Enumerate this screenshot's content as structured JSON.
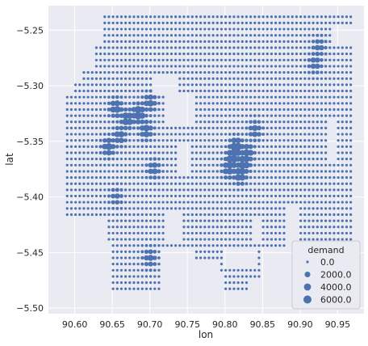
{
  "chart_data": {
    "type": "scatter",
    "xlabel": "lon",
    "ylabel": "lat",
    "xlim": [
      90.565,
      90.985
    ],
    "ylim": [
      -5.505,
      -5.228
    ],
    "xticks": [
      "90.60",
      "90.65",
      "90.70",
      "90.75",
      "90.80",
      "90.85",
      "90.90",
      "90.95"
    ],
    "yticks": [
      "−5.25",
      "−5.30",
      "−5.35",
      "−5.40",
      "−5.45",
      "−5.50"
    ],
    "grid": true,
    "background": "#eaeaf2",
    "marker_color": "#4c72b0",
    "grid_spacing": {
      "lon": 0.00555,
      "lat": 0.00556
    },
    "grid_lon_range": [
      90.59,
      90.97
    ],
    "grid_lat_range": [
      -5.485,
      -5.238
    ],
    "size_field": "demand",
    "legend": {
      "title": "demand",
      "placement": "lower-right",
      "entries": [
        {
          "label": "0.0",
          "value": 0
        },
        {
          "label": "2000.0",
          "value": 2000
        },
        {
          "label": "4000.0",
          "value": 4000
        },
        {
          "label": "6000.0",
          "value": 6000
        }
      ]
    },
    "demand_hotspots": [
      {
        "lon": 90.685,
        "lat": -5.325,
        "demand": 5500
      },
      {
        "lon": 90.67,
        "lat": -5.33,
        "demand": 4500
      },
      {
        "lon": 90.655,
        "lat": -5.32,
        "demand": 3800
      },
      {
        "lon": 90.695,
        "lat": -5.34,
        "demand": 3500
      },
      {
        "lon": 90.66,
        "lat": -5.345,
        "demand": 3000
      },
      {
        "lon": 90.645,
        "lat": -5.355,
        "demand": 3600
      },
      {
        "lon": 90.7,
        "lat": -5.315,
        "demand": 3000
      },
      {
        "lon": 90.815,
        "lat": -5.355,
        "demand": 5500
      },
      {
        "lon": 90.81,
        "lat": -5.365,
        "demand": 5000
      },
      {
        "lon": 90.825,
        "lat": -5.37,
        "demand": 4500
      },
      {
        "lon": 90.82,
        "lat": -5.38,
        "demand": 4000
      },
      {
        "lon": 90.805,
        "lat": -5.375,
        "demand": 3500
      },
      {
        "lon": 90.83,
        "lat": -5.36,
        "demand": 3500
      },
      {
        "lon": 90.84,
        "lat": -5.34,
        "demand": 2500
      },
      {
        "lon": 90.705,
        "lat": -5.375,
        "demand": 2500
      },
      {
        "lon": 90.7,
        "lat": -5.455,
        "demand": 2500
      },
      {
        "lon": 90.92,
        "lat": -5.28,
        "demand": 2200
      },
      {
        "lon": 90.925,
        "lat": -5.265,
        "demand": 1800
      },
      {
        "lon": 90.94,
        "lat": -5.455,
        "demand": 1500
      },
      {
        "lon": 90.655,
        "lat": -5.4,
        "demand": 1500
      }
    ]
  }
}
